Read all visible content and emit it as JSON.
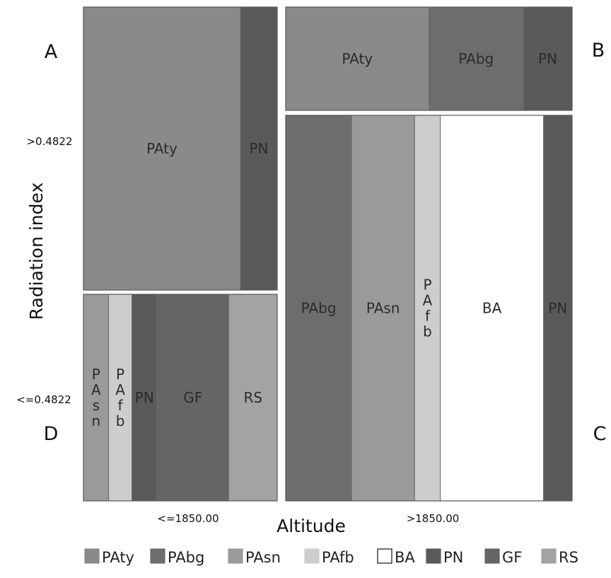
{
  "chart_data": {
    "type": "mosaic",
    "title": "",
    "xlabel": "Altitude",
    "ylabel": "Radiation index",
    "x_categories": [
      "<=1850.00",
      ">1850.00"
    ],
    "y_categories": [
      ">0.4822",
      "<=0.4822"
    ],
    "classes": [
      {
        "name": "PAty",
        "color": "#8a8a8a"
      },
      {
        "name": "PAbg",
        "color": "#6d6d6d"
      },
      {
        "name": "PAsn",
        "color": "#9a9a9a"
      },
      {
        "name": "PAfb",
        "color": "#cdcdcd"
      },
      {
        "name": "BA",
        "color": "#ffffff"
      },
      {
        "name": "PN",
        "color": "#5a5a5a"
      },
      {
        "name": "GF",
        "color": "#656565"
      },
      {
        "name": "RS",
        "color": "#a3a3a3"
      }
    ],
    "panels": [
      {
        "letter": "A",
        "altitude": "<=1850.00",
        "radiation": ">0.4822",
        "tiles": [
          {
            "class": "PAty",
            "proportion": 0.81
          },
          {
            "class": "PN",
            "proportion": 0.19
          }
        ]
      },
      {
        "letter": "B",
        "altitude": ">1850.00",
        "radiation": ">0.4822",
        "tiles": [
          {
            "class": "PAty",
            "proportion": 0.5
          },
          {
            "class": "PAbg",
            "proportion": 0.33
          },
          {
            "class": "PN",
            "proportion": 0.17
          }
        ]
      },
      {
        "letter": "C",
        "altitude": ">1850.00",
        "radiation": "<=0.4822",
        "tiles": [
          {
            "class": "PAbg",
            "proportion": 0.23
          },
          {
            "class": "PAsn",
            "proportion": 0.22
          },
          {
            "class": "PAfb",
            "proportion": 0.09
          },
          {
            "class": "BA",
            "proportion": 0.36
          },
          {
            "class": "PN",
            "proportion": 0.1
          }
        ]
      },
      {
        "letter": "D",
        "altitude": "<=1850.00",
        "radiation": "<=0.4822",
        "tiles": [
          {
            "class": "PAsn",
            "proportion": 0.13
          },
          {
            "class": "PAfb",
            "proportion": 0.12
          },
          {
            "class": "PN",
            "proportion": 0.13
          },
          {
            "class": "GF",
            "proportion": 0.37
          },
          {
            "class": "RS",
            "proportion": 0.25
          }
        ]
      }
    ]
  }
}
